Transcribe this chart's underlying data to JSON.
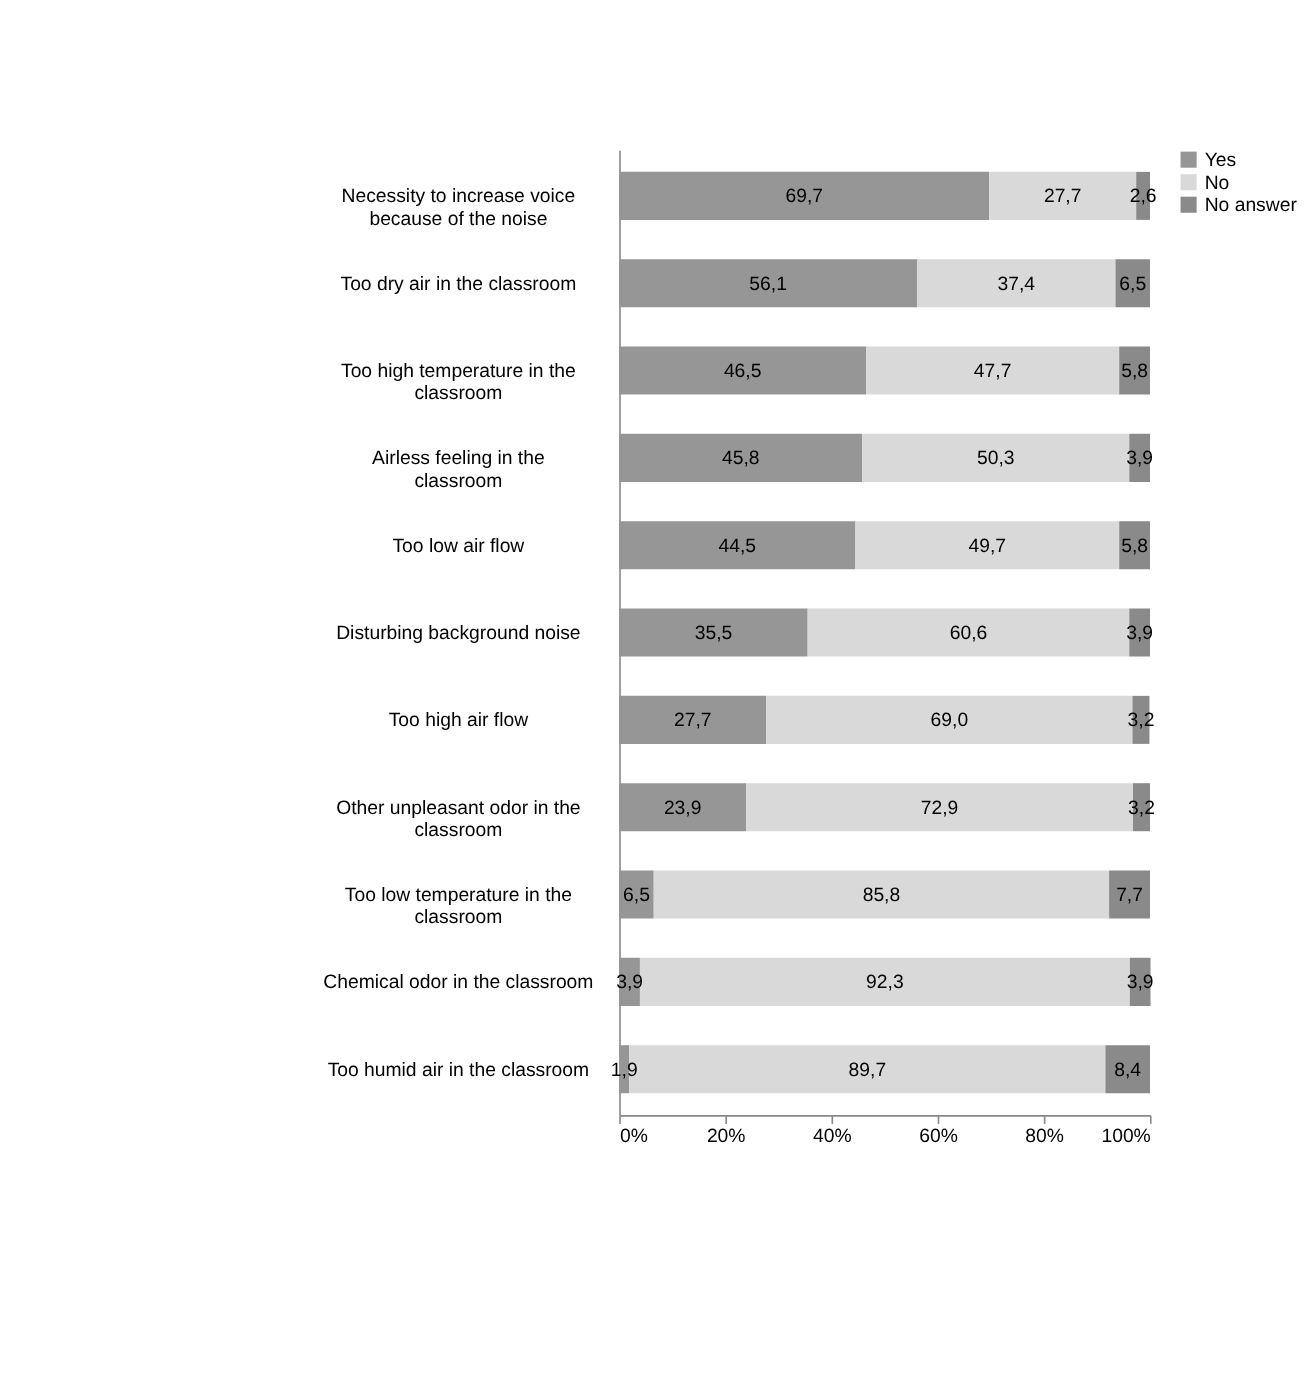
{
  "chart_data": {
    "type": "bar",
    "orientation": "horizontal",
    "stacked": true,
    "categories": [
      "Necessity to increase voice because of the noise",
      "Too dry air in the classroom",
      "Too high temperature in the classroom",
      "Airless feeling in the classroom",
      "Too low air flow",
      "Disturbing background noise",
      "Too high air flow",
      "Other unpleasant odor in the classroom",
      "Too low temperature in the classroom",
      "Chemical odor in the classroom",
      "Too humid air in the classroom"
    ],
    "series": [
      {
        "name": "Yes",
        "color": "#969696",
        "values": [
          69.7,
          56.1,
          46.5,
          45.8,
          44.5,
          35.5,
          27.7,
          23.9,
          6.5,
          3.9,
          1.9
        ],
        "value_labels": [
          "69,7",
          "56,1",
          "46,5",
          "45,8",
          "44,5",
          "35,5",
          "27,7",
          "23,9",
          "6,5",
          "3,9",
          "1,9"
        ]
      },
      {
        "name": "No",
        "color": "#d9d9d9",
        "values": [
          27.7,
          37.4,
          47.7,
          50.3,
          49.7,
          60.6,
          69.0,
          72.9,
          85.8,
          92.3,
          89.7
        ],
        "value_labels": [
          "27,7",
          "37,4",
          "47,7",
          "50,3",
          "49,7",
          "60,6",
          "69,0",
          "72,9",
          "85,8",
          "92,3",
          "89,7"
        ]
      },
      {
        "name": "No answer",
        "color": "#8a8a8a",
        "values": [
          2.6,
          6.5,
          5.8,
          3.9,
          5.8,
          3.9,
          3.2,
          3.2,
          7.7,
          3.9,
          8.4
        ],
        "value_labels": [
          "2,6",
          "6,5",
          "5,8",
          "3,9",
          "5,8",
          "3,9",
          "3,2",
          "3,2",
          "7,7",
          "3,9",
          "8,4"
        ]
      }
    ],
    "xlim": [
      0,
      100
    ],
    "xticks": [
      {
        "value": 0,
        "label": "0%"
      },
      {
        "value": 20,
        "label": "20%"
      },
      {
        "value": 40,
        "label": "40%"
      },
      {
        "value": 60,
        "label": "60%"
      },
      {
        "value": 80,
        "label": "80%"
      },
      {
        "value": 100,
        "label": "100%"
      }
    ],
    "grid": false,
    "legend": "right"
  }
}
